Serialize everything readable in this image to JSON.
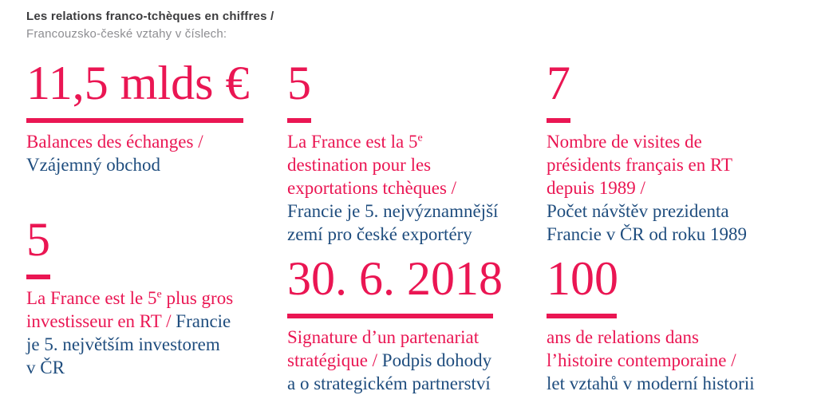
{
  "colors": {
    "accent_pink": "#ea1653",
    "text_blue": "#1f4d7e",
    "header_dark": "#3c3c3e",
    "header_gray": "#8e8e92"
  },
  "header": {
    "line1": "Les relations franco-tchèques en chiffres /",
    "line2": "Francouzsko-české vztahy v číslech:"
  },
  "columns": [
    {
      "blocks": [
        {
          "id": "trade-balance",
          "value": "11,5 mlds €",
          "rule_width": 272,
          "lines": [
            [
              {
                "t": "Balances des échanges /",
                "l": "fr"
              }
            ],
            [
              {
                "t": "Vzájemný obchod",
                "l": "cs"
              }
            ]
          ]
        },
        {
          "id": "investor-rank",
          "value": "5",
          "rule_width": 30,
          "lines": [
            [
              {
                "t": "La France est le 5",
                "l": "fr"
              },
              {
                "t": "e",
                "l": "fr",
                "sup": true
              },
              {
                "t": " plus gros",
                "l": "fr"
              }
            ],
            [
              {
                "t": "investisseur en RT / ",
                "l": "fr"
              },
              {
                "t": "Francie",
                "l": "cs"
              }
            ],
            [
              {
                "t": "je 5. největším investorem",
                "l": "cs"
              }
            ],
            [
              {
                "t": "v ČR",
                "l": "cs"
              }
            ]
          ]
        }
      ]
    },
    {
      "blocks": [
        {
          "id": "export-destination",
          "value": "5",
          "rule_width": 30,
          "lines": [
            [
              {
                "t": "La France est la 5",
                "l": "fr"
              },
              {
                "t": "e",
                "l": "fr",
                "sup": true
              }
            ],
            [
              {
                "t": "destination pour les",
                "l": "fr"
              }
            ],
            [
              {
                "t": "exportations tchèques /",
                "l": "fr"
              }
            ],
            [
              {
                "t": "Francie je 5. nejvýznamnější",
                "l": "cs"
              }
            ],
            [
              {
                "t": "zemí pro české exportéry",
                "l": "cs"
              }
            ]
          ]
        },
        {
          "id": "strategic-partnership",
          "value": "30. 6. 2018",
          "rule_width": 258,
          "lines": [
            [
              {
                "t": "Signature d’un partenariat",
                "l": "fr"
              }
            ],
            [
              {
                "t": "stratégique / ",
                "l": "fr"
              },
              {
                "t": "Podpis dohody",
                "l": "cs"
              }
            ],
            [
              {
                "t": "a o strategickém partnerství",
                "l": "cs"
              }
            ]
          ]
        }
      ]
    },
    {
      "blocks": [
        {
          "id": "presidential-visits",
          "value": "7",
          "rule_width": 30,
          "lines": [
            [
              {
                "t": "Nombre de visites de",
                "l": "fr"
              }
            ],
            [
              {
                "t": "présidents français en RT",
                "l": "fr"
              }
            ],
            [
              {
                "t": "depuis 1989 /",
                "l": "fr"
              }
            ],
            [
              {
                "t": "Počet návštěv prezidenta",
                "l": "cs"
              }
            ],
            [
              {
                "t": "Francie v ČR od roku 1989",
                "l": "cs"
              }
            ]
          ]
        },
        {
          "id": "years-of-relations",
          "value": "100",
          "rule_width": 88,
          "lines": [
            [
              {
                "t": "ans de relations dans",
                "l": "fr"
              }
            ],
            [
              {
                "t": "l’histoire contemporaine /",
                "l": "fr"
              }
            ],
            [
              {
                "t": "let vztahů v moderní historii",
                "l": "cs"
              }
            ]
          ]
        }
      ]
    }
  ]
}
